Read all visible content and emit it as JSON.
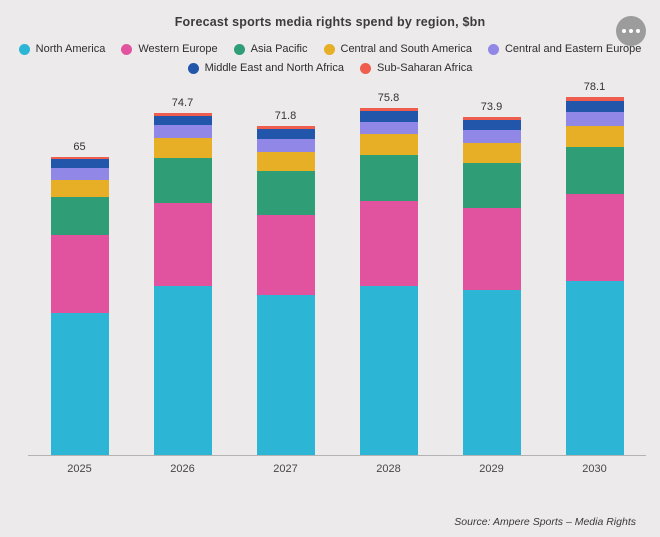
{
  "header": {
    "menu_icon": "ellipsis-icon"
  },
  "source": "Source:  Ampere Sports – Media Rights",
  "colors": {
    "background": "#eceaea",
    "axis": "#b3b3b3",
    "title_text": "#3c3c3c",
    "menu_button": "#9c9c9c"
  },
  "chart_data": {
    "type": "bar",
    "stacked": true,
    "title": "Forecast sports media rights spend by region, $bn",
    "xlabel": "",
    "ylabel": "",
    "grid": false,
    "legend_position": "top",
    "categories": [
      "2025",
      "2026",
      "2027",
      "2028",
      "2029",
      "2030"
    ],
    "totals": [
      65,
      74.7,
      71.8,
      75.8,
      73.9,
      78.1
    ],
    "series": [
      {
        "name": "North America",
        "color": "#2db5d5",
        "values": [
          31,
          37,
          35,
          37,
          36,
          38
        ]
      },
      {
        "name": "Western Europe",
        "color": "#e2539f",
        "values": [
          17,
          18,
          17.5,
          18.5,
          18,
          19
        ]
      },
      {
        "name": "Asia Pacific",
        "color": "#2f9e77",
        "values": [
          8.3,
          9.8,
          9.5,
          10,
          9.8,
          10.3
        ]
      },
      {
        "name": "Central and South America",
        "color": "#e6af26",
        "values": [
          3.7,
          4.4,
          4.2,
          4.5,
          4.3,
          4.6
        ]
      },
      {
        "name": "Central and Eastern Europe",
        "color": "#9187e6",
        "values": [
          2.6,
          2.8,
          2.7,
          2.8,
          2.8,
          3
        ]
      },
      {
        "name": "Middle East and North Africa",
        "color": "#2256aa",
        "values": [
          2,
          2.1,
          2.2,
          2.3,
          2.3,
          2.4
        ]
      },
      {
        "name": "Sub-Saharan Africa",
        "color": "#ef5d4e",
        "values": [
          0.4,
          0.6,
          0.7,
          0.7,
          0.7,
          0.8
        ]
      }
    ]
  }
}
